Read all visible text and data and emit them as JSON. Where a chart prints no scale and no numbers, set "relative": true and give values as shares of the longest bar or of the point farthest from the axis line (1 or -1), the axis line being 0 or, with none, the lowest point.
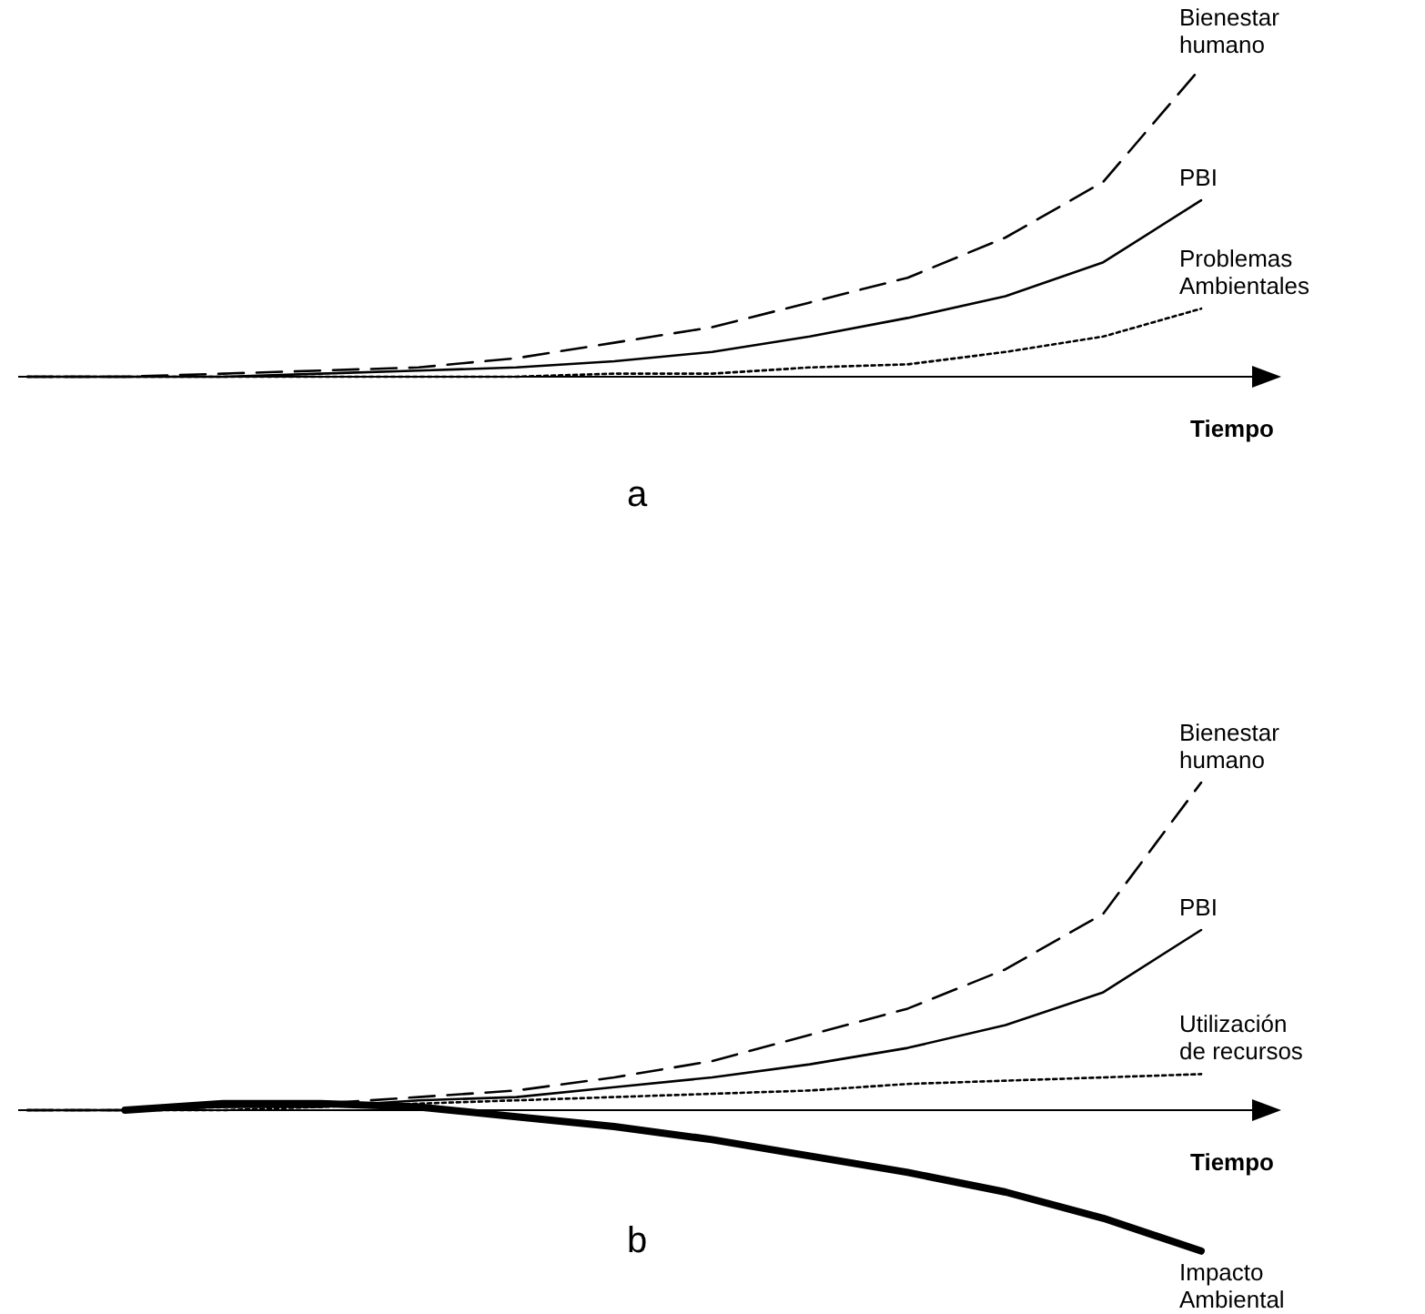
{
  "chart_data": [
    {
      "type": "line",
      "title": "a",
      "xlabel": "Tiempo",
      "relative": true,
      "categories": [
        null,
        null,
        null,
        null,
        null,
        null,
        null,
        null,
        null,
        null,
        null,
        null,
        null
      ],
      "series": [
        {
          "name": "Bienestar humano",
          "color": "#000000",
          "line_style": "dashed",
          "values": [
            0,
            0,
            0.01,
            0.02,
            0.03,
            0.06,
            0.11,
            0.16,
            0.24,
            0.32,
            0.45,
            0.63,
            1
          ]
        },
        {
          "name": "PBI",
          "color": "#000000",
          "line_style": "solid",
          "values": [
            0,
            0,
            0,
            0.01,
            0.02,
            0.03,
            0.05,
            0.08,
            0.13,
            0.19,
            0.26,
            0.37,
            0.57
          ]
        },
        {
          "name": "Problemas Ambientales",
          "color": "#000000",
          "line_style": "dotted",
          "values": [
            0,
            0,
            0,
            0,
            0,
            0,
            0.01,
            0.01,
            0.03,
            0.04,
            0.08,
            0.13,
            0.22
          ]
        }
      ]
    },
    {
      "type": "line",
      "title": "b",
      "xlabel": "Tiempo",
      "relative": true,
      "categories": [
        null,
        null,
        null,
        null,
        null,
        null,
        null,
        null,
        null,
        null,
        null,
        null,
        null
      ],
      "series": [
        {
          "name": "Bienestar humano",
          "color": "#000000",
          "line_style": "dashed",
          "values": [
            0,
            0,
            0.01,
            0.02,
            0.04,
            0.06,
            0.1,
            0.15,
            0.23,
            0.31,
            0.43,
            0.6,
            1
          ]
        },
        {
          "name": "PBI",
          "color": "#000000",
          "line_style": "solid",
          "values": [
            0,
            0,
            0.01,
            0.01,
            0.03,
            0.04,
            0.07,
            0.1,
            0.14,
            0.19,
            0.26,
            0.36,
            0.55
          ]
        },
        {
          "name": "Utilización de recursos",
          "color": "#000000",
          "line_style": "dotted",
          "values": [
            0,
            0,
            0,
            0.01,
            0.02,
            0.03,
            0.04,
            0.05,
            0.06,
            0.08,
            0.09,
            0.1,
            0.11
          ]
        },
        {
          "name": "Impacto Ambiental",
          "color": "#000000",
          "line_style": "solid",
          "values": [
            null,
            0,
            0.02,
            0.02,
            0.01,
            -0.02,
            -0.05,
            -0.09,
            -0.14,
            -0.19,
            -0.25,
            -0.33,
            -0.43
          ]
        }
      ]
    }
  ]
}
